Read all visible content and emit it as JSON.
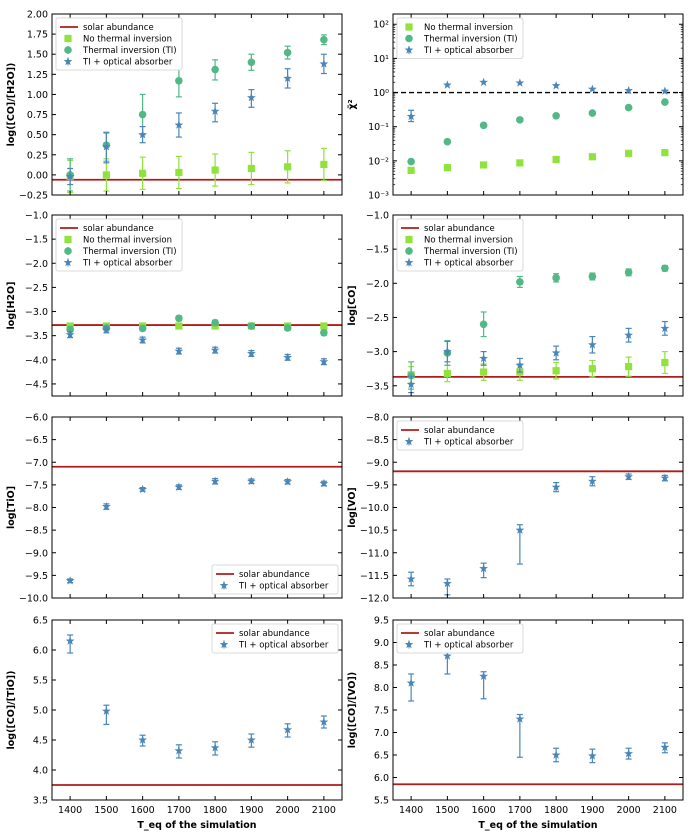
{
  "colors": {
    "solar": "#b01c1c",
    "no_ti": "#8fe33c",
    "ti": "#52b885",
    "ti_oa": "#4a86b8",
    "axis": "#000000"
  },
  "chart_data": [
    {
      "type": "scatter",
      "id": "co_h2o",
      "ylabel": "log([CO]/[H2O])",
      "xlabel": "",
      "ylim": [
        -0.25,
        2.0
      ],
      "scale": "linear",
      "yticks": [
        -0.25,
        0.0,
        0.25,
        0.5,
        0.75,
        1.0,
        1.25,
        1.5,
        1.75,
        2.0
      ],
      "ytick_labels": [
        "−0.25",
        "0.00",
        "0.25",
        "0.50",
        "0.75",
        "1.00",
        "1.25",
        "1.50",
        "1.75",
        "2.00"
      ],
      "x": [
        1400,
        1500,
        1600,
        1700,
        1800,
        1900,
        2000,
        2100
      ],
      "solar": -0.06,
      "legend": {
        "position": "top-left",
        "entries": [
          "solar abundance",
          "No thermal inversion",
          "Thermal inversion (TI)",
          "TI + optical absorber"
        ]
      },
      "series": [
        {
          "name": "No thermal inversion",
          "marker": "square",
          "color": "no_ti",
          "values": [
            -0.02,
            0.0,
            0.02,
            0.03,
            0.06,
            0.08,
            0.1,
            0.13
          ],
          "err_low": [
            0.2,
            0.2,
            0.2,
            0.2,
            0.2,
            0.2,
            0.2,
            0.2
          ],
          "err_high": [
            0.2,
            0.2,
            0.2,
            0.2,
            0.2,
            0.2,
            0.2,
            0.2
          ]
        },
        {
          "name": "Thermal inversion (TI)",
          "marker": "circle",
          "color": "ti",
          "values": [
            0.0,
            0.37,
            0.75,
            1.17,
            1.31,
            1.4,
            1.52,
            1.68
          ],
          "err_low": [
            0.2,
            0.2,
            0.25,
            0.2,
            0.13,
            0.1,
            0.08,
            0.06
          ],
          "err_high": [
            0.2,
            0.15,
            0.25,
            0.2,
            0.12,
            0.1,
            0.08,
            0.06
          ]
        },
        {
          "name": "TI + optical absorber",
          "marker": "star",
          "color": "ti_oa",
          "values": [
            -0.02,
            0.35,
            0.5,
            0.62,
            0.79,
            0.96,
            1.2,
            1.38
          ],
          "err_low": [
            0.1,
            0.2,
            0.1,
            0.15,
            0.13,
            0.12,
            0.12,
            0.12
          ],
          "err_high": [
            0.1,
            0.18,
            0.1,
            0.15,
            0.1,
            0.1,
            0.12,
            0.12
          ]
        }
      ]
    },
    {
      "type": "scatter",
      "id": "chi2",
      "ylabel": "χ̄²",
      "xlabel": "",
      "ylim": [
        -3,
        2.3
      ],
      "scale": "log",
      "yticks": [
        -3,
        -2,
        -1,
        0,
        1,
        2
      ],
      "ytick_labels": [
        "10⁻³",
        "10⁻²",
        "10⁻¹",
        "10⁰",
        "10¹",
        "10²"
      ],
      "x": [
        1400,
        1500,
        1600,
        1700,
        1800,
        1900,
        2000,
        2100
      ],
      "dashed_line": 0,
      "legend": {
        "position": "top-left",
        "entries": [
          "No thermal inversion",
          "Thermal inversion (TI)",
          "TI + optical absorber"
        ]
      },
      "series": [
        {
          "name": "No thermal inversion",
          "marker": "square",
          "color": "no_ti",
          "values": [
            -2.28,
            -2.2,
            -2.12,
            -2.06,
            -1.96,
            -1.88,
            -1.78,
            -1.76
          ]
        },
        {
          "name": "Thermal inversion (TI)",
          "marker": "circle",
          "color": "ti",
          "values": [
            -2.02,
            -1.44,
            -0.96,
            -0.8,
            -0.68,
            -0.6,
            -0.44,
            -0.28
          ]
        },
        {
          "name": "TI + optical absorber",
          "marker": "star",
          "color": "ti_oa",
          "values": [
            -0.7,
            0.22,
            0.3,
            0.28,
            0.2,
            0.1,
            0.06,
            0.04
          ],
          "err_low": [
            0.15,
            0,
            0,
            0,
            0,
            0,
            0,
            0
          ],
          "err_high": [
            0.18,
            0,
            0,
            0,
            0,
            0,
            0,
            0
          ]
        }
      ]
    },
    {
      "type": "scatter",
      "id": "h2o",
      "ylabel": "log[H2O]",
      "xlabel": "",
      "ylim": [
        -4.75,
        -1.0
      ],
      "scale": "linear",
      "yticks": [
        -4.5,
        -4.0,
        -3.5,
        -3.0,
        -2.5,
        -2.0,
        -1.5,
        -1.0
      ],
      "ytick_labels": [
        "−4.5",
        "−4.0",
        "−3.5",
        "−3.0",
        "−2.5",
        "−2.0",
        "−1.5",
        "−1.0"
      ],
      "x": [
        1400,
        1500,
        1600,
        1700,
        1800,
        1900,
        2000,
        2100
      ],
      "solar": -3.28,
      "legend": {
        "position": "top-left",
        "entries": [
          "solar abundance",
          "No thermal inversion",
          "Thermal inversion (TI)",
          "TI + optical absorber"
        ]
      },
      "series": [
        {
          "name": "No thermal inversion",
          "marker": "square",
          "color": "no_ti",
          "values": [
            -3.3,
            -3.3,
            -3.3,
            -3.3,
            -3.3,
            -3.3,
            -3.3,
            -3.3
          ],
          "err_low": [
            0.05,
            0.05,
            0.05,
            0.05,
            0.05,
            0.05,
            0.05,
            0.05
          ],
          "err_high": [
            0.05,
            0.05,
            0.05,
            0.05,
            0.05,
            0.05,
            0.05,
            0.05
          ]
        },
        {
          "name": "Thermal inversion (TI)",
          "marker": "circle",
          "color": "ti",
          "values": [
            -3.37,
            -3.34,
            -3.35,
            -3.14,
            -3.23,
            -3.3,
            -3.34,
            -3.44
          ],
          "err_low": [
            0.05,
            0.05,
            0.05,
            0.05,
            0.05,
            0.05,
            0.05,
            0.05
          ],
          "err_high": [
            0.05,
            0.05,
            0.05,
            0.05,
            0.05,
            0.05,
            0.05,
            0.05
          ]
        },
        {
          "name": "TI + optical absorber",
          "marker": "star",
          "color": "ti_oa",
          "values": [
            -3.48,
            -3.38,
            -3.59,
            -3.82,
            -3.8,
            -3.87,
            -3.95,
            -4.04
          ],
          "err_low": [
            0.06,
            0.06,
            0.06,
            0.06,
            0.06,
            0.06,
            0.06,
            0.06
          ],
          "err_high": [
            0.06,
            0.06,
            0.06,
            0.06,
            0.06,
            0.06,
            0.06,
            0.06
          ]
        }
      ]
    },
    {
      "type": "scatter",
      "id": "co",
      "ylabel": "log[CO]",
      "xlabel": "",
      "ylim": [
        -3.65,
        -1.0
      ],
      "scale": "linear",
      "yticks": [
        -3.5,
        -3.0,
        -2.5,
        -2.0,
        -1.5,
        -1.0
      ],
      "ytick_labels": [
        "−3.5",
        "−3.0",
        "−2.5",
        "−2.0",
        "−1.5",
        "−1.0"
      ],
      "x": [
        1400,
        1500,
        1600,
        1700,
        1800,
        1900,
        2000,
        2100
      ],
      "solar": -3.37,
      "legend": {
        "position": "top-left",
        "entries": [
          "solar abundance",
          "No thermal inversion",
          "Thermal inversion (TI)",
          "TI + optical absorber"
        ]
      },
      "series": [
        {
          "name": "No thermal inversion",
          "marker": "square",
          "color": "no_ti",
          "values": [
            -3.34,
            -3.32,
            -3.3,
            -3.3,
            -3.28,
            -3.25,
            -3.22,
            -3.16
          ],
          "err_low": [
            0.12,
            0.12,
            0.12,
            0.12,
            0.12,
            0.12,
            0.14,
            0.16
          ],
          "err_high": [
            0.12,
            0.12,
            0.12,
            0.12,
            0.12,
            0.12,
            0.14,
            0.16
          ]
        },
        {
          "name": "Thermal inversion (TI)",
          "marker": "circle",
          "color": "ti",
          "values": [
            -3.35,
            -3.02,
            -2.6,
            -1.98,
            -1.92,
            -1.9,
            -1.84,
            -1.78
          ],
          "err_low": [
            0.2,
            0.18,
            0.18,
            0.08,
            0.06,
            0.05,
            0.05,
            0.04
          ],
          "err_high": [
            0.2,
            0.18,
            0.18,
            0.08,
            0.06,
            0.05,
            0.05,
            0.04
          ]
        },
        {
          "name": "TI + optical absorber",
          "marker": "star",
          "color": "ti_oa",
          "values": [
            -3.48,
            -3.0,
            -3.1,
            -3.2,
            -3.02,
            -2.9,
            -2.76,
            -2.66
          ],
          "err_low": [
            0.12,
            0.15,
            0.1,
            0.1,
            0.1,
            0.12,
            0.1,
            0.1
          ],
          "err_high": [
            0.12,
            0.15,
            0.1,
            0.1,
            0.1,
            0.12,
            0.1,
            0.1
          ]
        }
      ]
    },
    {
      "type": "scatter",
      "id": "tio",
      "ylabel": "log[TiO]",
      "xlabel": "",
      "ylim": [
        -10.0,
        -6.0
      ],
      "scale": "linear",
      "yticks": [
        -10.0,
        -9.5,
        -9.0,
        -8.5,
        -8.0,
        -7.5,
        -7.0,
        -6.5,
        -6.0
      ],
      "ytick_labels": [
        "−10.0",
        "−9.5",
        "−9.0",
        "−8.5",
        "−8.0",
        "−7.5",
        "−7.0",
        "−6.5",
        "−6.0"
      ],
      "x": [
        1400,
        1500,
        1600,
        1700,
        1800,
        1900,
        2000,
        2100
      ],
      "solar": -7.1,
      "legend": {
        "position": "bottom-right",
        "entries": [
          "solar abundance",
          "TI + optical absorber"
        ]
      },
      "series": [
        {
          "name": "TI + optical absorber",
          "marker": "star",
          "color": "ti_oa",
          "values": [
            -9.62,
            -7.98,
            -7.6,
            -7.55,
            -7.42,
            -7.42,
            -7.43,
            -7.47
          ],
          "err_low": [
            0.04,
            0.06,
            0.04,
            0.05,
            0.06,
            0.05,
            0.05,
            0.05
          ],
          "err_high": [
            0.04,
            0.06,
            0.04,
            0.05,
            0.06,
            0.05,
            0.05,
            0.05
          ]
        }
      ]
    },
    {
      "type": "scatter",
      "id": "vo",
      "ylabel": "log[VO]",
      "xlabel": "",
      "ylim": [
        -12.0,
        -8.0
      ],
      "scale": "linear",
      "yticks": [
        -12.0,
        -11.5,
        -11.0,
        -10.5,
        -10.0,
        -9.5,
        -9.0,
        -8.5,
        -8.0
      ],
      "ytick_labels": [
        "−12.0",
        "−11.5",
        "−11.0",
        "−10.5",
        "−10.0",
        "−9.5",
        "−9.0",
        "−8.5",
        "−8.0"
      ],
      "x": [
        1400,
        1500,
        1600,
        1700,
        1800,
        1900,
        2000,
        2100
      ],
      "solar": -9.2,
      "legend": {
        "position": "top-left",
        "entries": [
          "solar abundance",
          "TI + optical absorber"
        ]
      },
      "series": [
        {
          "name": "TI + optical absorber",
          "marker": "star",
          "color": "ti_oa",
          "values": [
            -11.58,
            -11.68,
            -11.35,
            -10.5,
            -9.55,
            -9.42,
            -9.32,
            -9.35
          ],
          "err_low": [
            0.15,
            0.25,
            0.2,
            0.75,
            0.1,
            0.1,
            0.06,
            0.06
          ],
          "err_high": [
            0.15,
            0.1,
            0.12,
            0.12,
            0.1,
            0.1,
            0.06,
            0.06
          ]
        }
      ]
    },
    {
      "type": "scatter",
      "id": "co_tio",
      "ylabel": "log([CO]/[TiO])",
      "xlabel": "T_eq of the simulation",
      "ylim": [
        3.5,
        6.5
      ],
      "scale": "linear",
      "yticks": [
        3.5,
        4.0,
        4.5,
        5.0,
        5.5,
        6.0,
        6.5
      ],
      "ytick_labels": [
        "3.5",
        "4.0",
        "4.5",
        "5.0",
        "5.5",
        "6.0",
        "6.5"
      ],
      "x": [
        1400,
        1500,
        1600,
        1700,
        1800,
        1900,
        2000,
        2100
      ],
      "xtick_labels": [
        "1400",
        "1500",
        "1600",
        "1700",
        "1800",
        "1900",
        "2000",
        "2100"
      ],
      "solar": 3.75,
      "legend": {
        "position": "top-right",
        "entries": [
          "solar abundance",
          "TI + optical absorber"
        ]
      },
      "series": [
        {
          "name": "TI + optical absorber",
          "marker": "star",
          "color": "ti_oa",
          "values": [
            6.15,
            4.98,
            4.5,
            4.32,
            4.37,
            4.5,
            4.67,
            4.8
          ],
          "err_low": [
            0.2,
            0.22,
            0.1,
            0.12,
            0.12,
            0.12,
            0.12,
            0.1
          ],
          "err_high": [
            0.1,
            0.1,
            0.08,
            0.1,
            0.1,
            0.1,
            0.1,
            0.1
          ]
        }
      ]
    },
    {
      "type": "scatter",
      "id": "co_vo",
      "ylabel": "log([CO]/[VO])",
      "xlabel": "T_eq of the simulation",
      "ylim": [
        5.5,
        9.5
      ],
      "scale": "linear",
      "yticks": [
        5.5,
        6.0,
        6.5,
        7.0,
        7.5,
        8.0,
        8.5,
        9.0,
        9.5
      ],
      "ytick_labels": [
        "5.5",
        "6.0",
        "6.5",
        "7.0",
        "7.5",
        "8.0",
        "8.5",
        "9.0",
        "9.5"
      ],
      "x": [
        1400,
        1500,
        1600,
        1700,
        1800,
        1900,
        2000,
        2100
      ],
      "xtick_labels": [
        "1400",
        "1500",
        "1600",
        "1700",
        "1800",
        "1900",
        "2000",
        "2100"
      ],
      "solar": 5.85,
      "legend": {
        "position": "top-left",
        "entries": [
          "solar abundance",
          "TI + optical absorber"
        ]
      },
      "series": [
        {
          "name": "TI + optical absorber",
          "marker": "star",
          "color": "ti_oa",
          "values": [
            8.1,
            8.7,
            8.25,
            7.3,
            6.5,
            6.48,
            6.53,
            6.67
          ],
          "err_low": [
            0.4,
            0.4,
            0.5,
            0.85,
            0.15,
            0.15,
            0.12,
            0.12
          ],
          "err_high": [
            0.2,
            0.15,
            0.1,
            0.1,
            0.15,
            0.15,
            0.12,
            0.1
          ]
        }
      ]
    }
  ]
}
